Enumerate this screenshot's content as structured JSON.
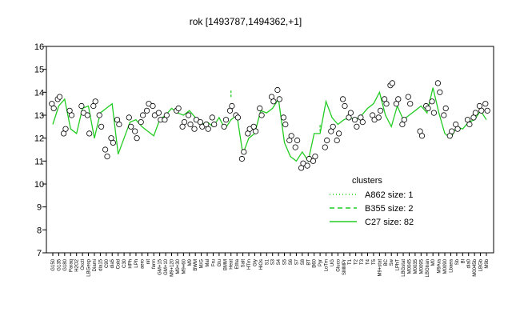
{
  "chart_data": {
    "type": "line",
    "title": "rok [1493787,1494362,+1]",
    "xlabel": "",
    "ylabel": "",
    "ylim": [
      7,
      16
    ],
    "yticks": [
      7,
      8,
      9,
      10,
      11,
      12,
      13,
      14,
      15,
      16
    ],
    "grid": false,
    "legend": {
      "title": "clusters",
      "placement": "right",
      "entries": [
        {
          "label": "A862 size: 1",
          "style": "dotted",
          "color": "#22cc22"
        },
        {
          "label": "B355 size: 2",
          "style": "dashed",
          "color": "#22cc22"
        },
        {
          "label": "C27 size: 82",
          "style": "solid",
          "color": "#22cc22"
        }
      ]
    },
    "categories": [
      "G150",
      "G135",
      "G180",
      "Paraq",
      "H2O2",
      "Oxctl",
      "LBGexp",
      "Diami",
      "dia15",
      "C90",
      "dia5",
      "Cold",
      "C30",
      "HPh",
      "LPh",
      "aero",
      "nit",
      "ferm",
      "GM+15",
      "GM+10",
      "M9+120",
      "M9+30",
      "M9+60",
      "M9",
      "BWM",
      "M/G",
      "Mal",
      "Fru",
      "Glu",
      "BMM",
      "Heat",
      "Etha",
      "Salt",
      "HTm",
      "Gly",
      "HiOs",
      "S1",
      "S3",
      "S4",
      "S5",
      "S6",
      "S7",
      "S8",
      "BT",
      "B60",
      "Pyr",
      "LoTm",
      "UG",
      "Gluco",
      "SMMPr",
      "T1",
      "T2",
      "T3",
      "T4",
      "T5",
      "M9+stat",
      "BC",
      "Sw",
      "LPhT",
      "LBGstat",
      "M0045",
      "M0035",
      "M0095",
      "LBGtran",
      "M0",
      "M9Ara",
      "M0090",
      "Lbaea",
      "Sb",
      "Bl",
      "dia0",
      "M0045b",
      "LBGb",
      "M9b"
    ],
    "series": [
      {
        "name": "C27 size: 82",
        "color": "#22cc22",
        "values": [
          12.6,
          13.4,
          13.7,
          12.4,
          12.2,
          13.3,
          13.4,
          12.0,
          13.1,
          13.3,
          13.5,
          11.3,
          12.0,
          12.7,
          12.8,
          12.5,
          12.3,
          12.1,
          12.8,
          13.0,
          13.3,
          13.1,
          13.0,
          13.2,
          12.9,
          12.6,
          12.7,
          12.5,
          12.9,
          12.4,
          12.8,
          13.0,
          11.3,
          12.0,
          12.2,
          13.2,
          13.1,
          13.3,
          13.7,
          11.8,
          11.2,
          11.0,
          11.4,
          11.0,
          12.2,
          12.2,
          13.6,
          12.9,
          12.6,
          12.8,
          12.9,
          12.8,
          13.0,
          13.3,
          13.5,
          14.0,
          13.0,
          12.5,
          13.4,
          12.8,
          13.0,
          13.2,
          13.4,
          13.1,
          14.2,
          13.1,
          12.2,
          12.0,
          12.5,
          12.4,
          12.7,
          12.8,
          13.2,
          12.8
        ]
      },
      {
        "name": "B355 size: 2",
        "color": "#22cc22",
        "values": [
          null,
          null,
          null,
          null,
          null,
          null,
          null,
          null,
          null,
          null,
          null,
          null,
          null,
          null,
          null,
          null,
          null,
          null,
          null,
          null,
          null,
          null,
          null,
          null,
          null,
          null,
          null,
          null,
          null,
          null,
          13.9,
          null,
          null,
          null,
          null,
          null,
          null,
          null,
          null,
          null,
          null,
          null,
          null,
          null,
          null,
          12.4,
          null,
          null,
          null,
          null,
          null,
          null,
          null,
          null,
          null,
          null,
          null,
          null,
          null,
          null,
          null,
          null,
          null,
          null,
          null,
          null,
          null,
          null,
          null,
          null,
          null,
          null,
          null,
          null
        ]
      }
    ],
    "points": [
      [
        13.5,
        13.3
      ],
      [
        13.7,
        13.8
      ],
      [
        12.2,
        12.4
      ],
      [
        13.2,
        13.0
      ],
      [
        13.4,
        13.1
      ],
      [
        13.0,
        12.2
      ],
      [
        13.4,
        13.6
      ],
      [
        13.0,
        12.5
      ],
      [
        11.5,
        11.2
      ],
      [
        12.0,
        11.8
      ],
      [
        12.8,
        12.6
      ],
      [
        12.9,
        12.5
      ],
      [
        12.3,
        12.0
      ],
      [
        12.7,
        13.0
      ],
      [
        13.2,
        13.5
      ],
      [
        13.4,
        13.0
      ],
      [
        13.1,
        12.8
      ],
      [
        12.8,
        13.0
      ],
      [
        13.2,
        13.3
      ],
      [
        12.5,
        12.7
      ],
      [
        13.0,
        12.6
      ],
      [
        12.4,
        12.8
      ],
      [
        12.7,
        12.5
      ],
      [
        12.6,
        12.4
      ],
      [
        12.9,
        12.6
      ],
      [
        12.5,
        12.8
      ],
      [
        13.2,
        13.4
      ],
      [
        13.0,
        12.9
      ],
      [
        11.1,
        11.4
      ],
      [
        12.2,
        12.4
      ],
      [
        12.5,
        12.3
      ],
      [
        13.3,
        13.0
      ],
      [
        13.8,
        13.6
      ],
      [
        14.1,
        13.7
      ],
      [
        12.9,
        12.6
      ],
      [
        11.9,
        12.1
      ],
      [
        11.6,
        11.9
      ],
      [
        10.7,
        10.9
      ],
      [
        10.8,
        11.1
      ],
      [
        11.0,
        11.2
      ],
      [
        11.6,
        11.9
      ],
      [
        12.3,
        12.5
      ],
      [
        11.9,
        12.2
      ],
      [
        13.7,
        13.4
      ],
      [
        12.9,
        13.1
      ],
      [
        12.8,
        12.5
      ],
      [
        12.9,
        12.7
      ],
      [
        13.0,
        12.8
      ],
      [
        12.9,
        13.2
      ],
      [
        13.7,
        13.5
      ],
      [
        14.3,
        14.4
      ],
      [
        13.5,
        13.7
      ],
      [
        12.6,
        12.8
      ],
      [
        13.8,
        13.5
      ],
      [
        12.3,
        12.1
      ],
      [
        13.4,
        13.3
      ],
      [
        13.6,
        13.1
      ],
      [
        14.4,
        14.0
      ],
      [
        13.0,
        13.3
      ],
      [
        12.1,
        12.3
      ],
      [
        12.6,
        12.4
      ],
      [
        12.8,
        12.6
      ],
      [
        12.9,
        13.1
      ],
      [
        13.4,
        13.2
      ],
      [
        13.5,
        13.2
      ]
    ]
  }
}
